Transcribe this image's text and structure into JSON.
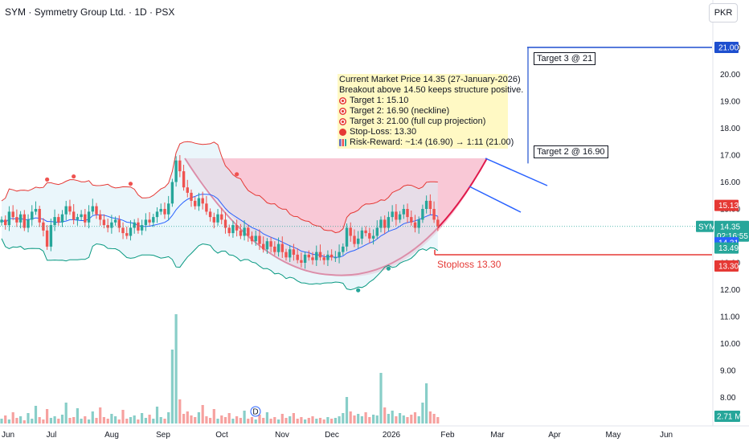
{
  "header": {
    "symbol_title": "SYM · Symmetry Group Ltd. · 1D · PSX",
    "currency": "PKR"
  },
  "annotation": {
    "lines": [
      {
        "icon": "none",
        "text": "Current Market Price 14.35 (27-January-2026)"
      },
      {
        "icon": "none",
        "text": "Breakout above 14.50 keeps structure positive."
      },
      {
        "icon": "target-icon",
        "text": "Target 1: 15.10"
      },
      {
        "icon": "target-icon",
        "text": "Target 2: 16.90 (neckline)"
      },
      {
        "icon": "target-icon",
        "text": "Target 3: 21.00 (full cup projection)"
      },
      {
        "icon": "red-circle-icon",
        "text": "Stop-Loss: 13.30"
      },
      {
        "icon": "bar-chart-icon",
        "text": "Risk-Reward: ~1:4 (16.90) → 1:11 (21.00)"
      }
    ],
    "target2_label": "Target 2 @ 16.90",
    "target3_label": "Target 3 @ 21",
    "stoploss_label": "Stoploss 13.30"
  },
  "price_axis": {
    "ticks": [
      "21.00",
      "20.00",
      "19.00",
      "18.00",
      "17.00",
      "16.00",
      "15.00",
      "14.00",
      "13.00",
      "12.00",
      "11.00",
      "10.00",
      "9.00",
      "8.00"
    ],
    "tags": [
      {
        "label": "21.00",
        "value": 21.0,
        "color": "#1e4fcf",
        "kind": "target"
      },
      {
        "label": "15.13",
        "value": 15.13,
        "color": "#e53935",
        "kind": "upper-band"
      },
      {
        "label": "SYM",
        "value": 14.35,
        "color": "#26a69a",
        "kind": "symbol",
        "extra": "14.35",
        "countdown": "02:16:55"
      },
      {
        "label": "14.31",
        "value": 14.31,
        "color": "#2962ff",
        "kind": "basis"
      },
      {
        "label": "13.49",
        "value": 13.49,
        "color": "#26a69a",
        "kind": "lower-band"
      },
      {
        "label": "13.30",
        "value": 13.3,
        "color": "#e53935",
        "kind": "stoploss"
      }
    ],
    "volume_tag": "2.71 M"
  },
  "time_axis": {
    "labels": [
      "Jun",
      "Jul",
      "Aug",
      "Sep",
      "Oct",
      "Nov",
      "Dec",
      "2026",
      "Feb",
      "Mar",
      "Apr",
      "May",
      "Jun"
    ],
    "event_marker": "D"
  },
  "colors": {
    "up": "#26a69a",
    "down": "#ef5350",
    "cup_line": "#e0194b",
    "cup_fill": "#f7b6c8",
    "upper_band": "#e53935",
    "lower_band": "#089981",
    "basis": "#2962ff",
    "band_fill": "#d8eef8",
    "target_line": "#1e4fcf"
  },
  "chart_data": {
    "type": "candlestick",
    "instrument": "SYM",
    "interval": "1D",
    "current_price": 14.35,
    "levels": {
      "target_1": 15.1,
      "target_2": 16.9,
      "target_3": 21.0,
      "stop_loss": 13.3,
      "breakout": 14.5
    },
    "price_range": [
      7.5,
      21.6
    ],
    "closes": [
      14.6,
      14.4,
      14.9,
      14.7,
      14.5,
      14.8,
      14.3,
      14.6,
      14.9,
      15.0,
      14.5,
      14.2,
      13.6,
      14.4,
      14.7,
      14.5,
      14.8,
      15.1,
      14.9,
      14.6,
      14.7,
      14.8,
      14.5,
      14.9,
      15.1,
      14.8,
      14.6,
      14.4,
      14.3,
      14.5,
      14.6,
      14.3,
      14.1,
      14.0,
      14.3,
      14.5,
      14.2,
      14.4,
      14.6,
      14.5,
      14.7,
      14.9,
      15.0,
      14.8,
      15.2,
      16.0,
      16.8,
      16.4,
      15.8,
      15.6,
      15.3,
      15.1,
      15.4,
      15.2,
      14.9,
      14.7,
      14.5,
      14.8,
      14.6,
      14.3,
      14.1,
      14.4,
      14.2,
      14.0,
      14.3,
      14.0,
      13.8,
      14.0,
      13.7,
      13.5,
      13.8,
      13.6,
      13.4,
      13.7,
      13.4,
      13.2,
      13.5,
      13.3,
      13.1,
      13.0,
      13.3,
      13.2,
      13.1,
      13.4,
      13.2,
      13.1,
      13.3,
      13.2,
      13.2,
      13.4,
      13.6,
      14.3,
      14.0,
      13.7,
      13.9,
      14.2,
      14.1,
      13.9,
      14.0,
      14.3,
      14.6,
      14.3,
      14.7,
      14.9,
      14.6,
      14.8,
      15.0,
      14.7,
      14.5,
      14.3,
      14.6,
      15.0,
      15.3,
      15.0,
      14.6,
      14.35
    ],
    "volumes": [
      0.6,
      1.0,
      0.5,
      1.4,
      0.7,
      0.9,
      0.4,
      1.3,
      0.6,
      2.2,
      0.8,
      0.5,
      1.8,
      0.7,
      0.9,
      0.6,
      1.1,
      2.6,
      0.7,
      0.8,
      1.9,
      0.6,
      0.9,
      0.5,
      1.5,
      0.7,
      2.0,
      0.8,
      0.6,
      1.2,
      0.9,
      0.5,
      1.7,
      0.6,
      0.8,
      1.0,
      0.5,
      1.3,
      0.7,
      1.1,
      0.6,
      2.1,
      0.8,
      0.6,
      1.4,
      9.2,
      13.6,
      3.0,
      1.2,
      1.5,
      1.0,
      0.8,
      1.4,
      2.3,
      0.9,
      0.7,
      1.8,
      0.6,
      1.0,
      0.8,
      1.3,
      0.6,
      0.9,
      0.7,
      1.6,
      0.6,
      0.8,
      0.5,
      1.1,
      0.7,
      1.4,
      0.6,
      0.8,
      0.5,
      1.2,
      0.7,
      0.9,
      1.3,
      0.6,
      0.8,
      0.5,
      0.7,
      0.9,
      0.6,
      0.7,
      0.5,
      0.8,
      0.6,
      0.7,
      0.9,
      1.3,
      3.3,
      1.5,
      1.0,
      1.2,
      0.9,
      1.4,
      0.8,
      1.1,
      1.0,
      6.3,
      2.0,
      1.2,
      1.6,
      0.9,
      1.3,
      1.0,
      0.8,
      1.1,
      1.4,
      0.9,
      2.6,
      5.0,
      1.5,
      1.2,
      0.8
    ]
  }
}
